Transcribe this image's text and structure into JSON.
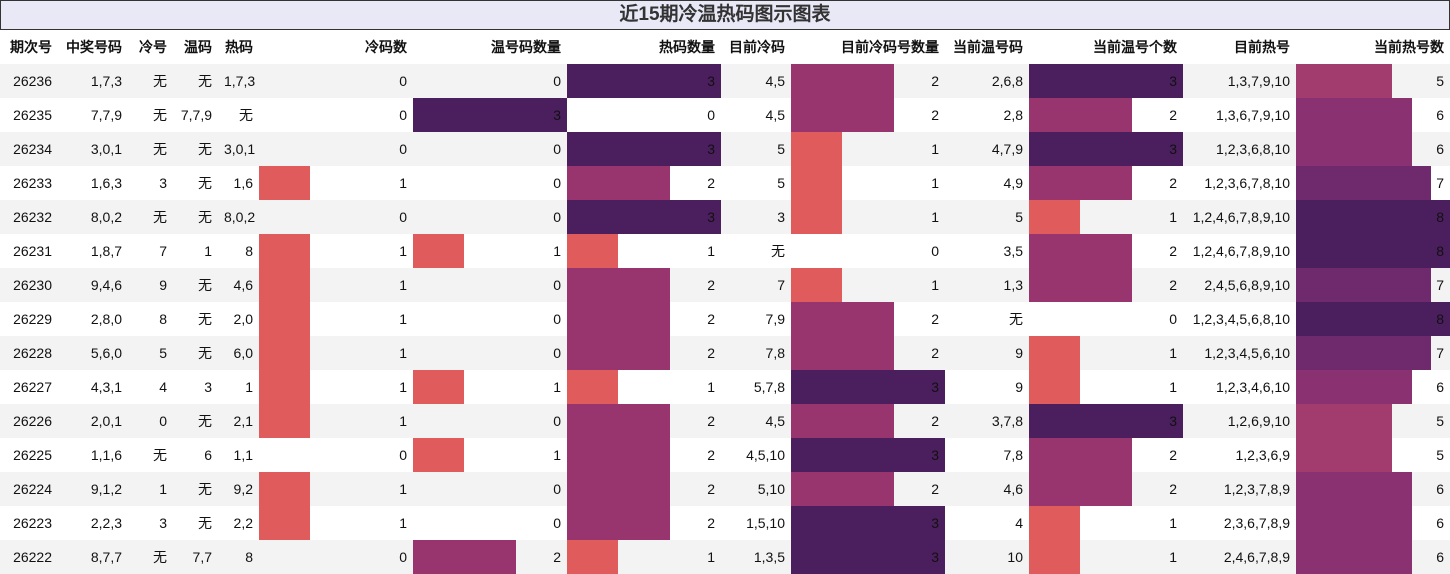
{
  "title": "近15期冷温热码图示图表",
  "columns": [
    "期次号",
    "中奖号码",
    "冷号",
    "温码",
    "热码",
    "冷码数",
    "温号码数量",
    "热码数量",
    "目前冷码",
    "目前冷码号数量",
    "当前温号码",
    "当前温号个数",
    "目前热号",
    "当前热号数"
  ],
  "chart_data": {
    "type": "table",
    "title": "近15期冷温热码图示图表",
    "bar_columns": [
      "冷码数",
      "温号码数量",
      "热码数量",
      "目前冷码号数量",
      "当前温号个数",
      "当前热号数"
    ],
    "bar_scale": {
      "max": 3,
      "max_hot": 8
    },
    "palette": {
      "0": "transparent",
      "1": "#e05c5c",
      "2": "#99356e",
      "3": "#4b1f5e",
      "5": "#a33c6e",
      "6": "#8a3171",
      "7": "#6e2a6c",
      "8": "#4b1f5e"
    },
    "rows": [
      [
        "26236",
        "1,7,3",
        "无",
        "无",
        "1,7,3",
        0,
        0,
        3,
        "4,5",
        2,
        "2,6,8",
        3,
        "1,3,7,9,10",
        5
      ],
      [
        "26235",
        "7,7,9",
        "无",
        "7,7,9",
        "无",
        0,
        3,
        0,
        "4,5",
        2,
        "2,8",
        2,
        "1,3,6,7,9,10",
        6
      ],
      [
        "26234",
        "3,0,1",
        "无",
        "无",
        "3,0,1",
        0,
        0,
        3,
        "5",
        1,
        "4,7,9",
        3,
        "1,2,3,6,8,10",
        6
      ],
      [
        "26233",
        "1,6,3",
        "3",
        "无",
        "1,6",
        1,
        0,
        2,
        "5",
        1,
        "4,9",
        2,
        "1,2,3,6,7,8,10",
        7
      ],
      [
        "26232",
        "8,0,2",
        "无",
        "无",
        "8,0,2",
        0,
        0,
        3,
        "3",
        1,
        "5",
        1,
        "1,2,4,6,7,8,9,10",
        8
      ],
      [
        "26231",
        "1,8,7",
        "7",
        "1",
        "8",
        1,
        1,
        1,
        "无",
        0,
        "3,5",
        2,
        "1,2,4,6,7,8,9,10",
        8
      ],
      [
        "26230",
        "9,4,6",
        "9",
        "无",
        "4,6",
        1,
        0,
        2,
        "7",
        1,
        "1,3",
        2,
        "2,4,5,6,8,9,10",
        7
      ],
      [
        "26229",
        "2,8,0",
        "8",
        "无",
        "2,0",
        1,
        0,
        2,
        "7,9",
        2,
        "无",
        0,
        "1,2,3,4,5,6,8,10",
        8
      ],
      [
        "26228",
        "5,6,0",
        "5",
        "无",
        "6,0",
        1,
        0,
        2,
        "7,8",
        2,
        "9",
        1,
        "1,2,3,4,5,6,10",
        7
      ],
      [
        "26227",
        "4,3,1",
        "4",
        "3",
        "1",
        1,
        1,
        1,
        "5,7,8",
        3,
        "9",
        1,
        "1,2,3,4,6,10",
        6
      ],
      [
        "26226",
        "2,0,1",
        "0",
        "无",
        "2,1",
        1,
        0,
        2,
        "4,5",
        2,
        "3,7,8",
        3,
        "1,2,6,9,10",
        5
      ],
      [
        "26225",
        "1,1,6",
        "无",
        "6",
        "1,1",
        0,
        1,
        2,
        "4,5,10",
        3,
        "7,8",
        2,
        "1,2,3,6,9",
        5
      ],
      [
        "26224",
        "9,1,2",
        "1",
        "无",
        "9,2",
        1,
        0,
        2,
        "5,10",
        2,
        "4,6",
        2,
        "1,2,3,7,8,9",
        6
      ],
      [
        "26223",
        "2,2,3",
        "3",
        "无",
        "2,2",
        1,
        0,
        2,
        "1,5,10",
        3,
        "4",
        1,
        "2,3,6,7,8,9",
        6
      ],
      [
        "26222",
        "8,7,7",
        "无",
        "7,7",
        "8",
        0,
        2,
        1,
        "1,3,5",
        3,
        "10",
        1,
        "2,4,6,7,8,9",
        6
      ]
    ]
  }
}
